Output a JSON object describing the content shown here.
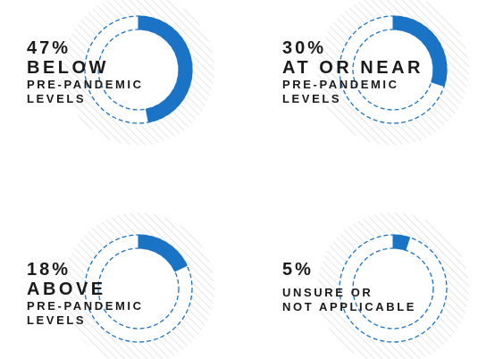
{
  "colors": {
    "accent": "#1a73c5",
    "hatch": "#d6d6d6",
    "text": "#1a1a1a"
  },
  "chart_data": {
    "type": "pie",
    "style": "donut",
    "segments": [
      {
        "percent": "47%",
        "value": 47,
        "line1": "BELOW",
        "line2": "PRE-PANDEMIC",
        "line3": "LEVELS"
      },
      {
        "percent": "30%",
        "value": 30,
        "line1": "AT OR NEAR",
        "line2": "PRE-PANDEMIC",
        "line3": "LEVELS"
      },
      {
        "percent": "18%",
        "value": 18,
        "line1": "ABOVE",
        "line2": "PRE-PANDEMIC",
        "line3": "LEVELS"
      },
      {
        "percent": "5%",
        "value": 5,
        "line1": "",
        "line2": "UNSURE OR",
        "line3": "NOT APPLICABLE"
      }
    ]
  }
}
